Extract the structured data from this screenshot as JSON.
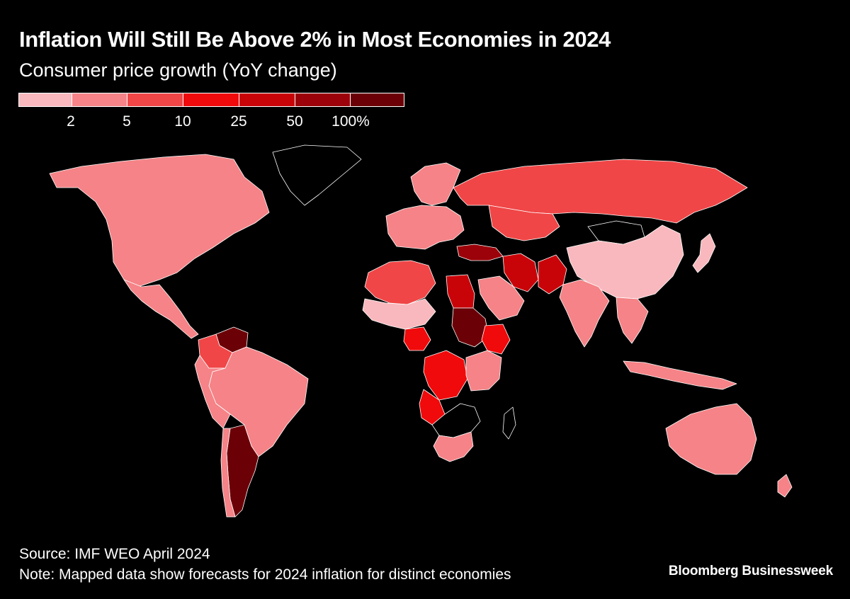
{
  "header": {
    "title": "Inflation Will Still Be Above 2% in Most Economies in 2024",
    "subtitle": "Consumer price growth (YoY change)"
  },
  "legend": {
    "bins": [
      {
        "color": "#f9b8bd"
      },
      {
        "color": "#f58387"
      },
      {
        "color": "#f04647"
      },
      {
        "color": "#f00a0b"
      },
      {
        "color": "#c90409"
      },
      {
        "color": "#9b0209"
      },
      {
        "color": "#6b0107"
      }
    ],
    "ticks": [
      "2",
      "5",
      "10",
      "25",
      "50",
      "100%"
    ]
  },
  "map": {
    "no_data_color": "#000000",
    "border_color": "#ffffff",
    "regions": [
      {
        "name": "North America",
        "color": "#f58387"
      },
      {
        "name": "Greenland",
        "color": "#000000"
      },
      {
        "name": "Central America",
        "color": "#f58387"
      },
      {
        "name": "Venezuela",
        "color": "#6b0107"
      },
      {
        "name": "Colombia",
        "color": "#f04647"
      },
      {
        "name": "Brazil",
        "color": "#f58387"
      },
      {
        "name": "Andean South America",
        "color": "#f58387"
      },
      {
        "name": "Argentina",
        "color": "#6b0107"
      },
      {
        "name": "Chile",
        "color": "#f58387"
      },
      {
        "name": "Western Europe",
        "color": "#f58387"
      },
      {
        "name": "Nordics",
        "color": "#f58387"
      },
      {
        "name": "Russia",
        "color": "#f04647"
      },
      {
        "name": "Kazakhstan",
        "color": "#f04647"
      },
      {
        "name": "Turkey",
        "color": "#9b0209"
      },
      {
        "name": "Iran",
        "color": "#c90409"
      },
      {
        "name": "Pakistan",
        "color": "#c90409"
      },
      {
        "name": "Saudi Arabia",
        "color": "#f58387"
      },
      {
        "name": "Egypt",
        "color": "#c90409"
      },
      {
        "name": "Sudan",
        "color": "#6b0107"
      },
      {
        "name": "Ethiopia",
        "color": "#f00a0b"
      },
      {
        "name": "Nigeria",
        "color": "#f00a0b"
      },
      {
        "name": "Maghreb",
        "color": "#f04647"
      },
      {
        "name": "Sahel",
        "color": "#f9b8bd"
      },
      {
        "name": "DR Congo",
        "color": "#f00a0b"
      },
      {
        "name": "Angola",
        "color": "#f00a0b"
      },
      {
        "name": "East Africa",
        "color": "#f58387"
      },
      {
        "name": "Southern Africa",
        "color": "#000000"
      },
      {
        "name": "South Africa",
        "color": "#f58387"
      },
      {
        "name": "Madagascar",
        "color": "#000000"
      },
      {
        "name": "Mongolia",
        "color": "#000000"
      },
      {
        "name": "China",
        "color": "#f9b8bd"
      },
      {
        "name": "India",
        "color": "#f58387"
      },
      {
        "name": "Southeast Asia",
        "color": "#f58387"
      },
      {
        "name": "Indonesia",
        "color": "#f58387"
      },
      {
        "name": "Japan",
        "color": "#f9b8bd"
      },
      {
        "name": "Australia",
        "color": "#f58387"
      },
      {
        "name": "New Zealand",
        "color": "#f58387"
      }
    ]
  },
  "footer": {
    "source": "Source: IMF WEO April 2024",
    "note": "Note: Mapped data show forecasts for 2024 inflation for distinct economies"
  },
  "brand": "Bloomberg Businessweek"
}
